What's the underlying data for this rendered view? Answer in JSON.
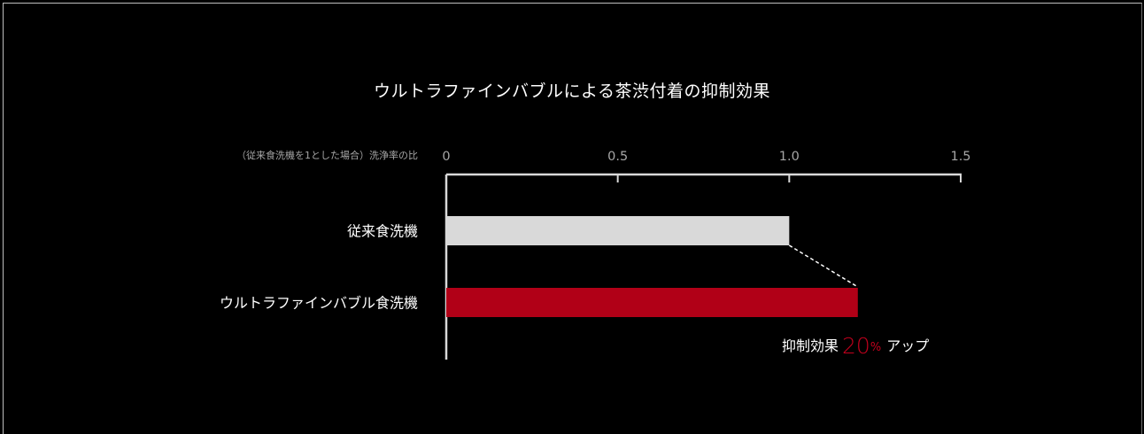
{
  "chart_data": {
    "type": "bar",
    "orientation": "horizontal",
    "title": "ウルトラファインバブルによる茶渋付着の抑制効果",
    "xlabel": "（従来食洗機を1とした場合）洗浄率の比",
    "ylabel": "",
    "xlim": [
      0,
      1.5
    ],
    "xticks": [
      "0",
      "0.5",
      "1.0",
      "1.5"
    ],
    "xtick_values": [
      0,
      0.5,
      1.0,
      1.5
    ],
    "categories": [
      "従来食洗機",
      "ウルトラファインバブル食洗機"
    ],
    "values": [
      1.0,
      1.2
    ],
    "bar_colors": [
      "#d9d9d9",
      "#b10017"
    ],
    "grid": false,
    "annotation": {
      "prefix": "抑制効果",
      "value": "20",
      "unit": "%",
      "suffix": "アップ",
      "color": "#c4001d"
    }
  }
}
